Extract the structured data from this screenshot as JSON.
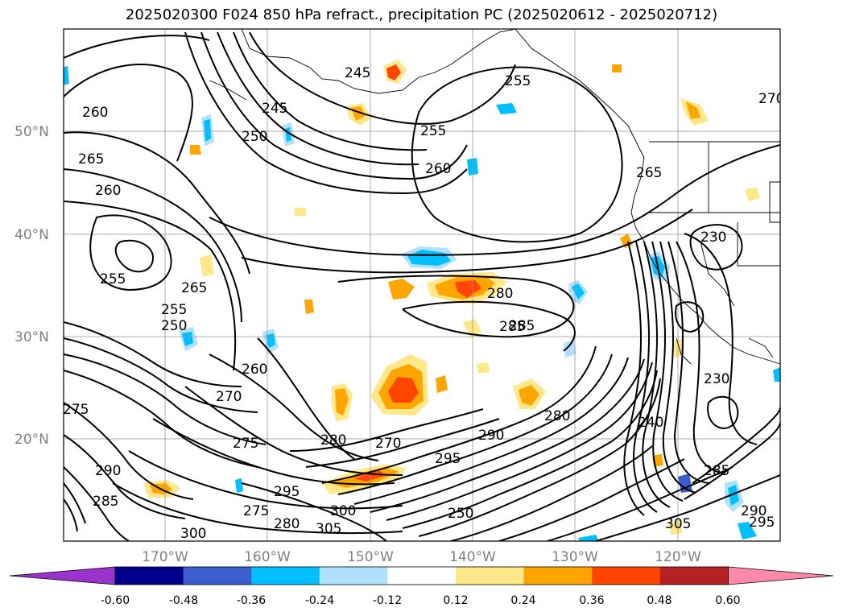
{
  "title": "2025020300 F024 850 hPa refract., precipitation PC (2025020612 - 2025020712)",
  "latitude_labels": [
    "50°N",
    "40°N",
    "30°N",
    "20°N"
  ],
  "longitude_labels": [
    "170°W",
    "160°W",
    "150°W",
    "140°W",
    "130°W",
    "120°W"
  ],
  "colorbar": {
    "ticks": [
      "-0.60",
      "-0.48",
      "-0.36",
      "-0.24",
      "-0.12",
      "0.12",
      "0.24",
      "0.36",
      "0.48",
      "0.60"
    ],
    "colors": [
      "#9933cc",
      "#00008b",
      "#3a5fcd",
      "#00bfff",
      "#b0e2ff",
      "#ffffff",
      "#ffe78a",
      "#ffa500",
      "#ff4500",
      "#b22222",
      "#ff89a8"
    ]
  },
  "contour_labels": [
    "245",
    "255",
    "270",
    "260",
    "265",
    "260",
    "255",
    "245",
    "250",
    "250",
    "255",
    "265",
    "260",
    "255",
    "265",
    "280",
    "285",
    "230",
    "275",
    "270",
    "280",
    "285",
    "290",
    "295",
    "300",
    "305",
    "305",
    "295",
    "290",
    "285",
    "275",
    "280",
    "285",
    "290",
    "295",
    "300",
    "230",
    "240",
    "250",
    "260",
    "270",
    "280",
    "275"
  ]
}
